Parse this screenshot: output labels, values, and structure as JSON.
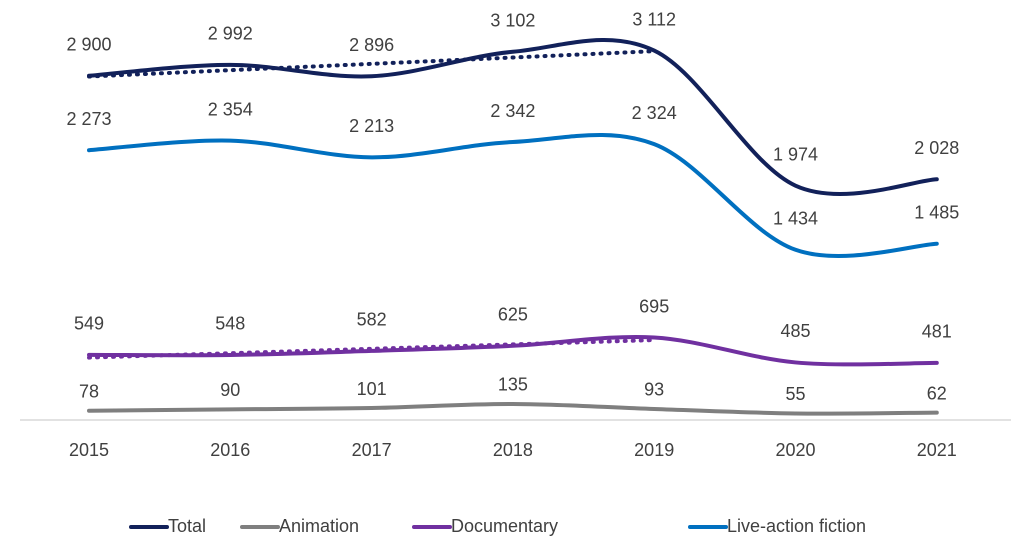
{
  "chart_data": {
    "type": "line",
    "categories": [
      "2015",
      "2016",
      "2017",
      "2018",
      "2019",
      "2020",
      "2021"
    ],
    "smooth": true,
    "legend": "bottom",
    "series": [
      {
        "name": "Total",
        "color": "#12215a",
        "values": [
          2900,
          2992,
          2896,
          3102,
          3112,
          1974,
          2028
        ],
        "value_labels": [
          "2 900",
          "2 992",
          "2 896",
          "3 102",
          "3 112",
          "1 974",
          "2 028"
        ],
        "trendline": {
          "from": "2015",
          "to": "2019"
        }
      },
      {
        "name": "Animation",
        "color": "#7f7f7f",
        "values": [
          78,
          90,
          101,
          135,
          93,
          55,
          62
        ]
      },
      {
        "name": "Documentary",
        "color": "#7030a0",
        "values": [
          549,
          548,
          582,
          625,
          695,
          485,
          481
        ],
        "trendline": {
          "from": "2015",
          "to": "2019"
        }
      },
      {
        "name": "Live-action fiction",
        "color": "#0070c0",
        "values": [
          2273,
          2354,
          2213,
          2342,
          2324,
          1434,
          1485
        ],
        "value_labels": [
          "2 273",
          "2 354",
          "2 213",
          "2 342",
          "2 324",
          "1 434",
          "1 485"
        ]
      }
    ]
  }
}
